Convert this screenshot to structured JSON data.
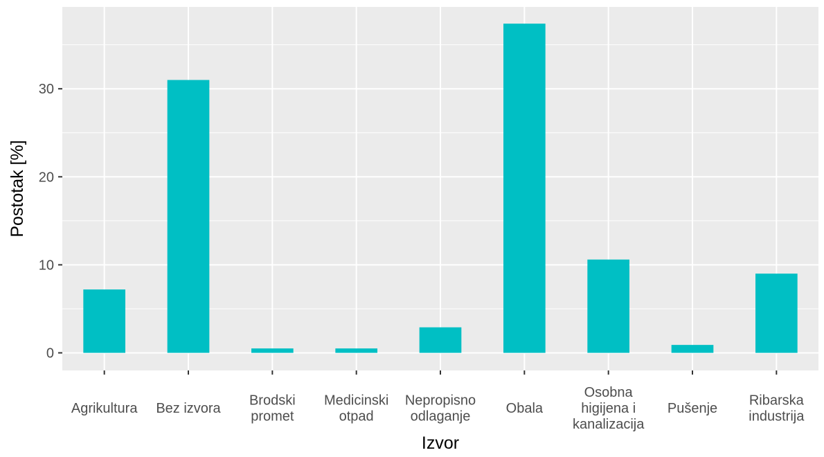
{
  "chart_data": {
    "type": "bar",
    "xlabel": "Izvor",
    "ylabel": "Postotak [%]",
    "categories": [
      [
        "Agrikultura"
      ],
      [
        "Bez izvora"
      ],
      [
        "Brodski",
        "promet"
      ],
      [
        "Medicinski",
        "otpad"
      ],
      [
        "Nepropisno",
        "odlaganje"
      ],
      [
        "Obala"
      ],
      [
        "Osobna",
        "higijena i",
        "kanalizacija"
      ],
      [
        "Pušenje"
      ],
      [
        "Ribarska",
        "industrija"
      ]
    ],
    "values": [
      7.2,
      31.0,
      0.5,
      0.5,
      2.9,
      37.4,
      10.6,
      0.9,
      9.0
    ],
    "yticks": [
      0,
      10,
      20,
      30
    ],
    "ylim": [
      -2.0,
      39.3
    ],
    "grid": true,
    "legend": "none",
    "colors": {
      "bar": "#00BFC4",
      "panel": "#EBEBEB",
      "grid": "#FFFFFF",
      "text": "#4D4D4D",
      "title": "#000000",
      "tick": "#333333"
    }
  }
}
